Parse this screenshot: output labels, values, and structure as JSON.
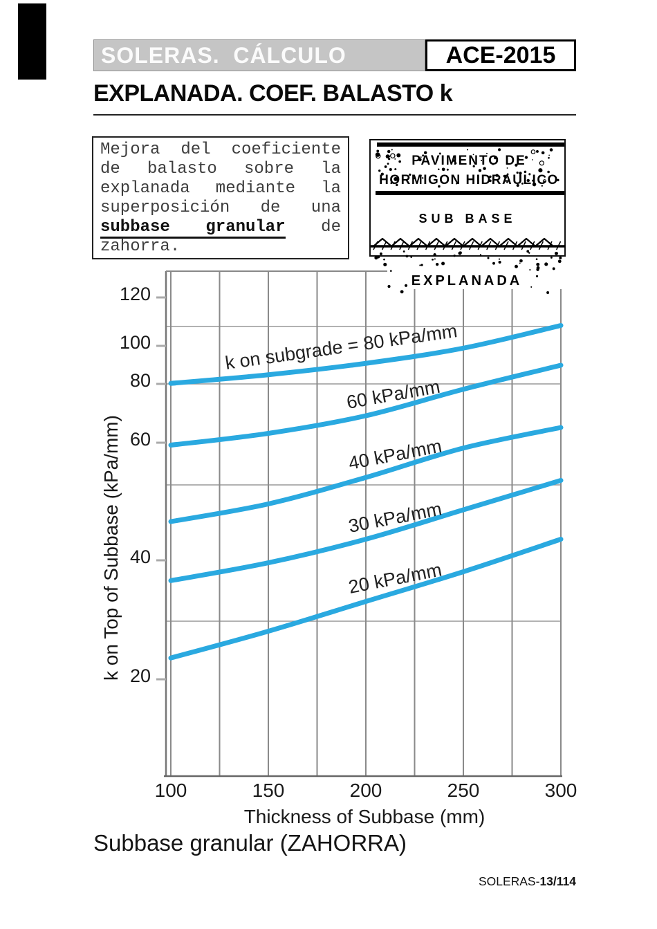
{
  "page": {
    "header": {
      "title_bar": "SOLERAS.  CÁLCULO",
      "badge": "ACE-2015"
    },
    "heading": "EXPLANADA. COEF. BALASTO k",
    "note": {
      "pre": "Mejora del coeficiente de balasto sobre la explanada mediante la superposición de una ",
      "emphasis": "subbase granular",
      "post": " de zahorra."
    },
    "diagram": {
      "layer_top_line1": "PAVIMENTO DE",
      "layer_top_line2": "HORMIGON HIDRAULICO",
      "layer_middle": "SUB BASE",
      "layer_bottom": "EXPLANADA"
    },
    "caption": "Subbase granular (ZAHORRA)",
    "footer": {
      "doc": "SOLERAS-",
      "page_num": "13/114"
    },
    "colors": {
      "curve_blue": "#2aa9e0",
      "titlebar_gray": "#c5c5c5",
      "grid_gray": "#8a8a8a"
    }
  },
  "chart_data": {
    "type": "line",
    "title": "",
    "xlabel": "Thickness of Subbase (mm)",
    "ylabel": "k on Top of Subbase (kPa/mm)",
    "x": [
      100,
      150,
      200,
      250,
      300
    ],
    "x_ticks": [
      100,
      150,
      200,
      250,
      300
    ],
    "y_ticks": [
      120,
      100,
      80,
      60,
      40,
      20
    ],
    "xlim": [
      100,
      300
    ],
    "ylim": [
      0,
      120
    ],
    "grid": true,
    "legend": "inline-curve-labels",
    "series": [
      {
        "k_on_subgrade": 80,
        "label": "k on subgrade = 80 kPa/mm",
        "values": [
          79,
          83,
          89,
          97,
          107
        ]
      },
      {
        "k_on_subgrade": 60,
        "label": "60 kPa/mm",
        "values": [
          59,
          62,
          68,
          77,
          88
        ]
      },
      {
        "k_on_subgrade": 40,
        "label": "40 kPa/mm",
        "values": [
          46,
          49,
          53.5,
          58.5,
          64
        ]
      },
      {
        "k_on_subgrade": 30,
        "label": "30 kPa/mm",
        "values": [
          36,
          39,
          43,
          48,
          53
        ]
      },
      {
        "k_on_subgrade": 20,
        "label": "20 kPa/mm",
        "values": [
          23,
          27.5,
          32.5,
          37.5,
          43
        ]
      }
    ]
  }
}
